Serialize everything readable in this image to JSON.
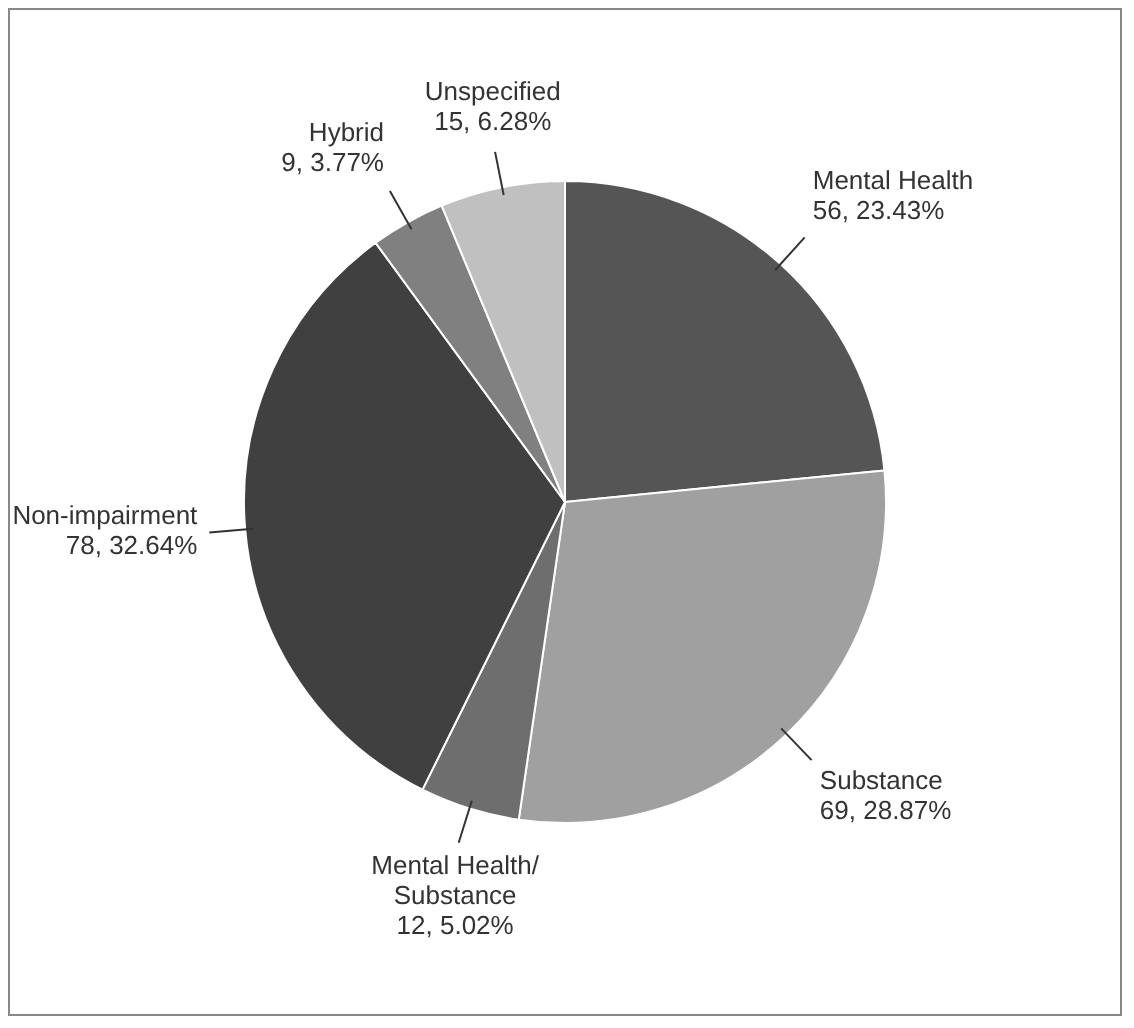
{
  "chart_data": {
    "type": "pie",
    "categories": [
      "Mental Health",
      "Substance",
      "Mental Health/ Substance",
      "Non-impairment",
      "Hybrid",
      "Unspecified"
    ],
    "values": [
      56,
      69,
      12,
      78,
      9,
      15
    ],
    "value_labels": [
      "56, 23.43%",
      "69, 28.87%",
      "12, 5.02%",
      "78, 32.64%",
      "9, 3.77%",
      "15, 6.28%"
    ],
    "colors": [
      "#555555",
      "#a0a0a0",
      "#6e6e6e",
      "#404040",
      "#808080",
      "#c0c0c0"
    ],
    "legend": false
  }
}
